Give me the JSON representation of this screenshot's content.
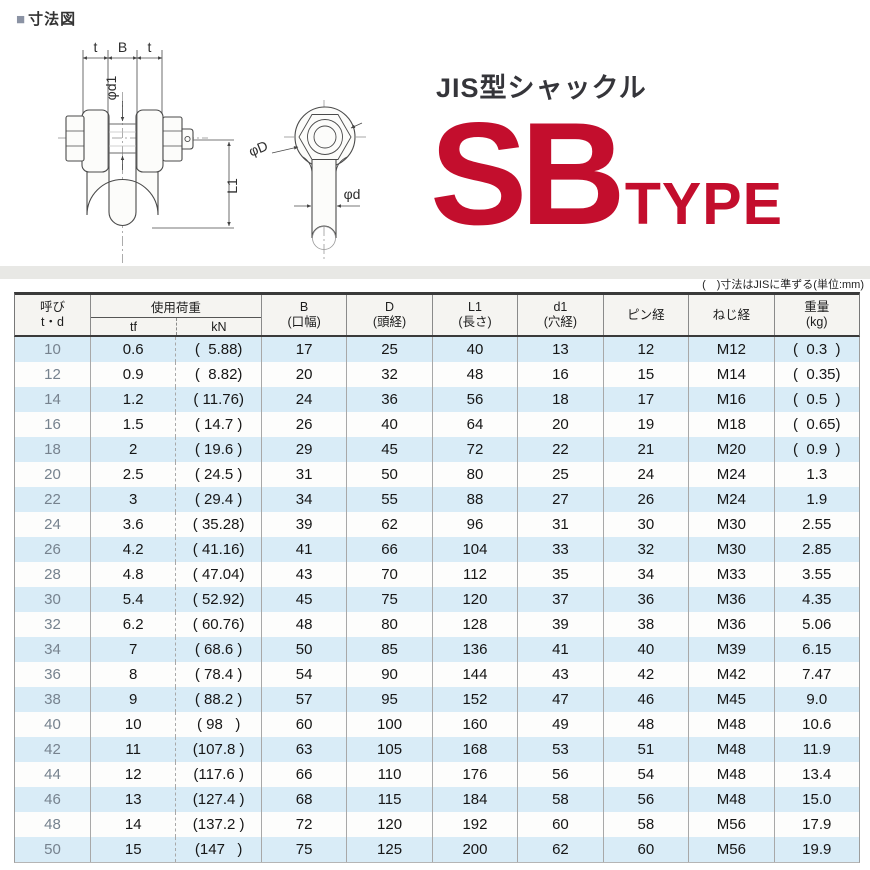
{
  "colors": {
    "accent_red": "#c30e2d",
    "stripe_blue": "#d9ecf7",
    "bullet_gray": "#8b93a4"
  },
  "section": {
    "label_square": "■",
    "label_text": "寸法図"
  },
  "title": {
    "subtitle": "JIS型シャックル",
    "main": "SB",
    "suffix": "TYPE"
  },
  "note": "(　)寸法はJISに準ずる(単位:mm)",
  "diagram": {
    "labels": {
      "t_left": "t",
      "b": "B",
      "t_right": "t",
      "phi_d1": "φd1",
      "l1": "L1",
      "phi_D": "φD",
      "phi_d": "φd"
    }
  },
  "table": {
    "col1": {
      "line1": "呼び",
      "line2": "t・d"
    },
    "load": {
      "title": "使用荷重",
      "sub_tf": "tf",
      "sub_kn": "kN"
    },
    "cols": [
      {
        "line1": "B",
        "line2": "(口幅)"
      },
      {
        "line1": "D",
        "line2": "(頭経)"
      },
      {
        "line1": "L1",
        "line2": "(長さ)"
      },
      {
        "line1": "d1",
        "line2": "(穴経)"
      },
      {
        "line1": "ピン経",
        "line2": ""
      },
      {
        "line1": "ねじ経",
        "line2": ""
      },
      {
        "line1": "重量",
        "line2": "(kg)"
      }
    ],
    "rows": [
      [
        "10",
        "0.6",
        "(  5.88)",
        "17",
        "25",
        "40",
        "13",
        "12",
        "M12",
        "(  0.3  )"
      ],
      [
        "12",
        "0.9",
        "(  8.82)",
        "20",
        "32",
        "48",
        "16",
        "15",
        "M14",
        "(  0.35)"
      ],
      [
        "14",
        "1.2",
        "( 11.76)",
        "24",
        "36",
        "56",
        "18",
        "17",
        "M16",
        "(  0.5  )"
      ],
      [
        "16",
        "1.5",
        "( 14.7 )",
        "26",
        "40",
        "64",
        "20",
        "19",
        "M18",
        "(  0.65)"
      ],
      [
        "18",
        "2",
        "( 19.6 )",
        "29",
        "45",
        "72",
        "22",
        "21",
        "M20",
        "(  0.9  )"
      ],
      [
        "20",
        "2.5",
        "( 24.5 )",
        "31",
        "50",
        "80",
        "25",
        "24",
        "M24",
        "1.3"
      ],
      [
        "22",
        "3",
        "( 29.4 )",
        "34",
        "55",
        "88",
        "27",
        "26",
        "M24",
        "1.9"
      ],
      [
        "24",
        "3.6",
        "( 35.28)",
        "39",
        "62",
        "96",
        "31",
        "30",
        "M30",
        "2.55"
      ],
      [
        "26",
        "4.2",
        "( 41.16)",
        "41",
        "66",
        "104",
        "33",
        "32",
        "M30",
        "2.85"
      ],
      [
        "28",
        "4.8",
        "( 47.04)",
        "43",
        "70",
        "112",
        "35",
        "34",
        "M33",
        "3.55"
      ],
      [
        "30",
        "5.4",
        "( 52.92)",
        "45",
        "75",
        "120",
        "37",
        "36",
        "M36",
        "4.35"
      ],
      [
        "32",
        "6.2",
        "( 60.76)",
        "48",
        "80",
        "128",
        "39",
        "38",
        "M36",
        "5.06"
      ],
      [
        "34",
        "7",
        "( 68.6 )",
        "50",
        "85",
        "136",
        "41",
        "40",
        "M39",
        "6.15"
      ],
      [
        "36",
        "8",
        "( 78.4 )",
        "54",
        "90",
        "144",
        "43",
        "42",
        "M42",
        "7.47"
      ],
      [
        "38",
        "9",
        "( 88.2 )",
        "57",
        "95",
        "152",
        "47",
        "46",
        "M45",
        "9.0"
      ],
      [
        "40",
        "10",
        "( 98   )",
        "60",
        "100",
        "160",
        "49",
        "48",
        "M48",
        "10.6"
      ],
      [
        "42",
        "11",
        "(107.8 )",
        "63",
        "105",
        "168",
        "53",
        "51",
        "M48",
        "11.9"
      ],
      [
        "44",
        "12",
        "(117.6 )",
        "66",
        "110",
        "176",
        "56",
        "54",
        "M48",
        "13.4"
      ],
      [
        "46",
        "13",
        "(127.4 )",
        "68",
        "115",
        "184",
        "58",
        "56",
        "M48",
        "15.0"
      ],
      [
        "48",
        "14",
        "(137.2 )",
        "72",
        "120",
        "192",
        "60",
        "58",
        "M56",
        "17.9"
      ],
      [
        "50",
        "15",
        "(147   )",
        "75",
        "125",
        "200",
        "62",
        "60",
        "M56",
        "19.9"
      ]
    ]
  }
}
